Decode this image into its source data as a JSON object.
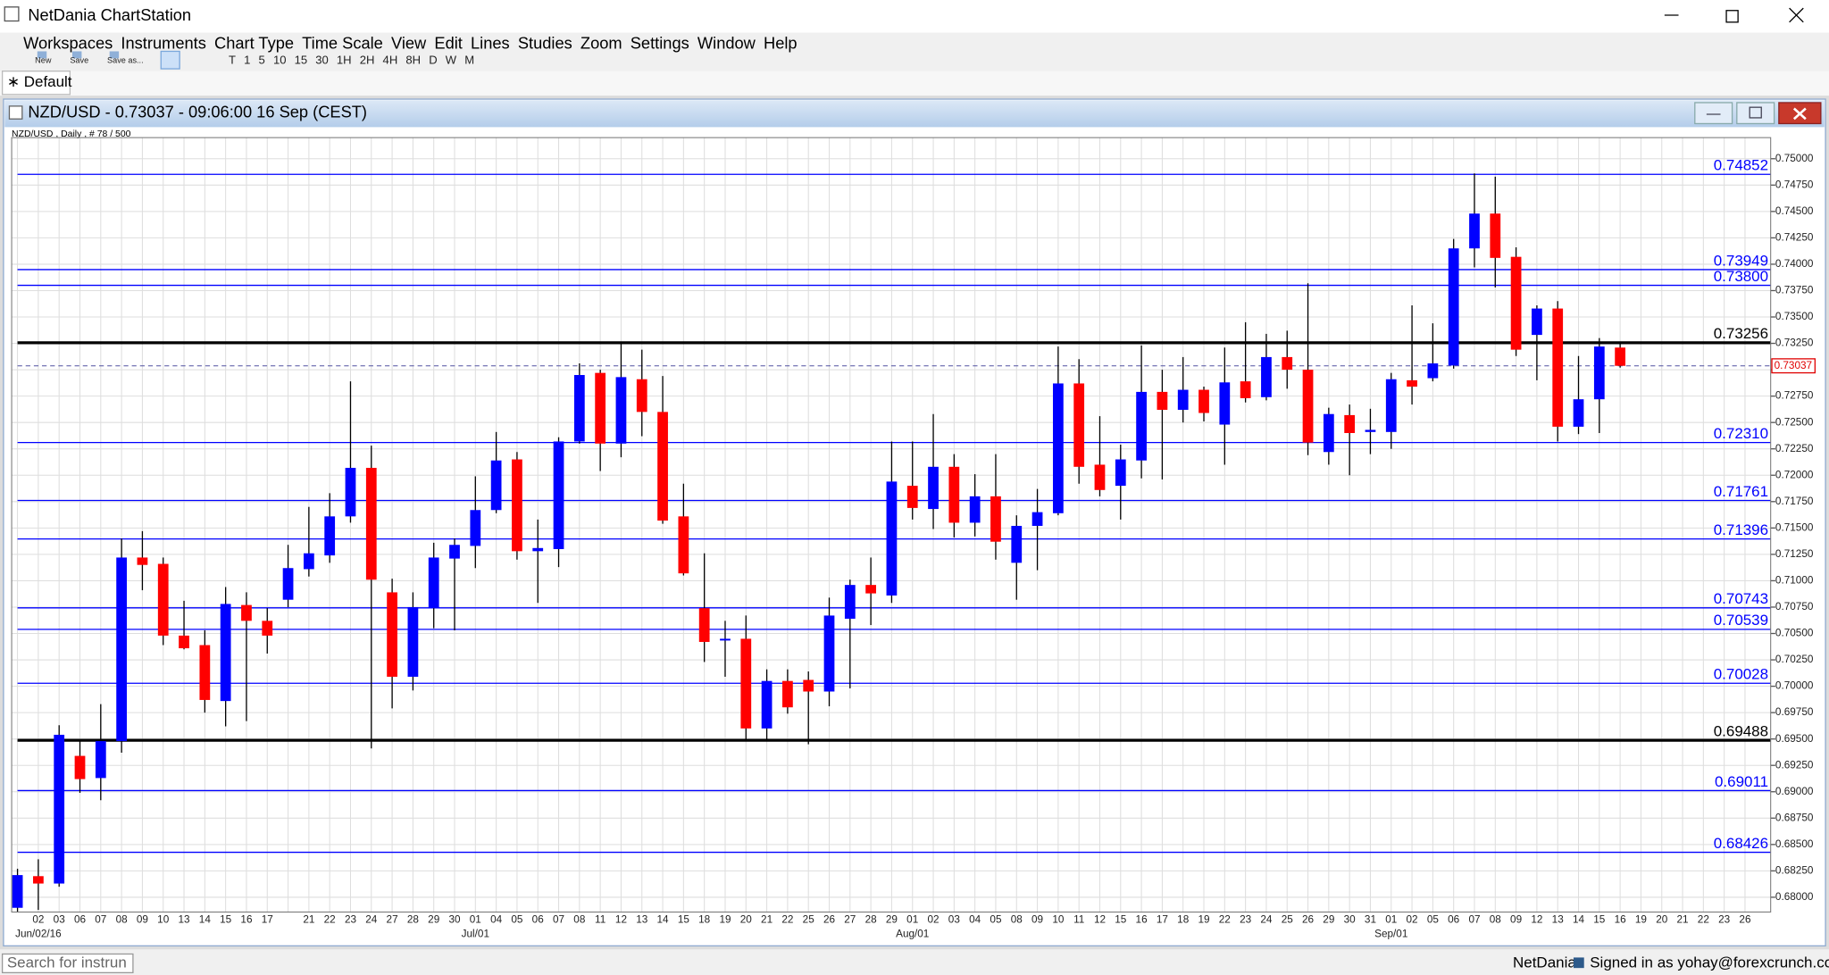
{
  "app": {
    "title": "NetDania ChartStation",
    "menu": [
      "Workspaces",
      "Instruments",
      "Chart Type",
      "Time Scale",
      "View",
      "Edit",
      "Lines",
      "Studies",
      "Zoom",
      "Settings",
      "Window",
      "Help"
    ],
    "file_buttons": [
      "New",
      "Save",
      "Save as..."
    ],
    "timeframes": [
      "T",
      "1",
      "5",
      "10",
      "15",
      "30",
      "1H",
      "2H",
      "4H",
      "8H",
      "D",
      "W",
      "M"
    ],
    "tab": "∗ Default",
    "window_title": "NZD/USD - 0.73037 - 09:06:00  16 Sep (CEST)",
    "footer": {
      "search": "Search for instrun",
      "brand": "NetDania",
      "signed_in": "Signed in as yohay@forexcrunch.com"
    }
  },
  "chart_data": {
    "type": "candlestick",
    "caption": "NZD/USD , Daily , # 78 / 500",
    "categories": [
      null,
      "02",
      "03",
      "06",
      "07",
      "08",
      "09",
      "10",
      "13",
      "14",
      "15",
      "16",
      "17",
      null,
      "21",
      "22",
      "23",
      "24",
      "27",
      "28",
      "29",
      "30",
      "01",
      "04",
      "05",
      "06",
      "07",
      "08",
      "11",
      "12",
      "13",
      "14",
      "15",
      "18",
      "19",
      "20",
      "21",
      "22",
      "25",
      "26",
      "27",
      "28",
      "29",
      "01",
      "02",
      "03",
      "04",
      "05",
      "08",
      "09",
      "10",
      "11",
      "12",
      "15",
      "16",
      "17",
      "18",
      "19",
      "22",
      "23",
      "24",
      "25",
      "26",
      "29",
      "30",
      "31",
      "01",
      "02",
      "05",
      "06",
      "07",
      "08",
      "09",
      "12",
      "13",
      "14",
      "15",
      "16",
      "19",
      "20",
      "21",
      "22",
      "23",
      "26"
    ],
    "month_labels": [
      null,
      "Jun/02/16",
      null,
      null,
      null,
      null,
      null,
      null,
      null,
      null,
      null,
      null,
      null,
      null,
      null,
      null,
      null,
      null,
      null,
      null,
      null,
      null,
      "Jul/01",
      null,
      null,
      null,
      null,
      null,
      null,
      null,
      null,
      null,
      null,
      null,
      null,
      null,
      null,
      null,
      null,
      null,
      null,
      null,
      null,
      "Aug/01",
      null,
      null,
      null,
      null,
      null,
      null,
      null,
      null,
      null,
      null,
      null,
      null,
      null,
      null,
      null,
      null,
      null,
      null,
      null,
      null,
      null,
      null,
      "Sep/01",
      null,
      null,
      null,
      null,
      null,
      null,
      null,
      null,
      null,
      null,
      null,
      null,
      null,
      null,
      null,
      null,
      null
    ],
    "open": [
      0.679,
      0.682,
      0.6813,
      0.6934,
      0.6913,
      0.6948,
      0.7122,
      0.7116,
      0.7048,
      0.7039,
      0.6986,
      0.7077,
      0.7062,
      0.7082,
      0.7111,
      0.7124,
      0.7161,
      0.7207,
      0.7089,
      0.7009,
      0.7074,
      0.7121,
      0.7133,
      0.7167,
      0.7215,
      0.7128,
      0.713,
      0.7232,
      0.7297,
      0.723,
      0.7291,
      0.726,
      0.7161,
      0.7074,
      0.7044,
      0.7045,
      0.696,
      0.7005,
      0.7006,
      0.6995,
      0.7064,
      0.7096,
      0.7086,
      0.719,
      0.7168,
      0.7208,
      0.7155,
      0.718,
      0.7117,
      0.7152,
      0.7164,
      0.7287,
      0.721,
      0.719,
      0.7214,
      0.7279,
      0.7262,
      0.7281,
      0.7248,
      0.7289,
      0.7274,
      0.7312,
      0.73,
      0.7222,
      0.7257,
      0.7241,
      0.7241,
      0.729,
      0.7292,
      0.7304,
      0.7415,
      0.7448,
      0.7407,
      0.7333,
      0.7358,
      0.7246,
      0.7272,
      0.7321,
      null,
      null,
      null,
      null,
      null,
      null
    ],
    "high": [
      0.6827,
      0.6836,
      0.6963,
      0.6948,
      0.6983,
      0.714,
      0.7147,
      0.7122,
      0.7081,
      0.7053,
      0.7094,
      0.7089,
      0.7074,
      0.7134,
      0.717,
      0.7183,
      0.7289,
      0.7228,
      0.7102,
      0.7089,
      0.7136,
      0.714,
      0.7199,
      0.7241,
      0.7222,
      0.7158,
      0.7236,
      0.7306,
      0.73,
      0.7326,
      0.7319,
      0.7294,
      0.7192,
      0.7126,
      0.7062,
      0.7067,
      0.7016,
      0.7016,
      0.7014,
      0.7084,
      0.7101,
      0.7122,
      0.7232,
      0.7232,
      0.7258,
      0.722,
      0.7201,
      0.722,
      0.7162,
      0.7187,
      0.7322,
      0.731,
      0.7256,
      0.7229,
      0.7323,
      0.73,
      0.7312,
      0.7284,
      0.7321,
      0.7345,
      0.7334,
      0.7337,
      0.7382,
      0.7264,
      0.7267,
      0.7263,
      0.7297,
      0.7361,
      0.7344,
      0.7424,
      0.7486,
      0.7483,
      0.7416,
      0.7361,
      0.7365,
      0.7313,
      0.733,
      0.7325,
      null,
      null,
      null,
      null,
      null,
      null
    ],
    "low": [
      0.6785,
      0.6788,
      0.681,
      0.6899,
      0.6892,
      0.6937,
      0.7091,
      0.7039,
      0.7035,
      0.6975,
      0.6962,
      0.6967,
      0.7031,
      0.7075,
      0.7104,
      0.7117,
      0.7155,
      0.6941,
      0.6979,
      0.6996,
      0.7055,
      0.7053,
      0.7112,
      0.7164,
      0.712,
      0.7079,
      0.7113,
      0.723,
      0.7204,
      0.7217,
      0.7237,
      0.7154,
      0.7105,
      0.7023,
      0.7009,
      0.6949,
      0.6949,
      0.6974,
      0.6945,
      0.6981,
      0.6998,
      0.7058,
      0.7079,
      0.7158,
      0.7149,
      0.7141,
      0.7142,
      0.712,
      0.7082,
      0.711,
      0.7162,
      0.7192,
      0.718,
      0.7158,
      0.7197,
      0.7196,
      0.725,
      0.7251,
      0.721,
      0.7269,
      0.7271,
      0.7282,
      0.7219,
      0.721,
      0.72,
      0.722,
      0.7225,
      0.7267,
      0.7289,
      0.7301,
      0.7397,
      0.7378,
      0.7313,
      0.729,
      0.7232,
      0.7239,
      0.724,
      0.7302,
      null,
      null,
      null,
      null,
      null,
      null
    ],
    "close": [
      0.6821,
      0.6813,
      0.6954,
      0.6912,
      0.6948,
      0.7122,
      0.7115,
      0.7048,
      0.7036,
      0.6987,
      0.7078,
      0.7062,
      0.7048,
      0.7112,
      0.7126,
      0.7161,
      0.7207,
      0.7101,
      0.7009,
      0.7075,
      0.7122,
      0.7134,
      0.7167,
      0.7214,
      0.7128,
      0.7131,
      0.7232,
      0.7295,
      0.723,
      0.7293,
      0.726,
      0.7157,
      0.7107,
      0.7042,
      0.7045,
      0.696,
      0.7005,
      0.698,
      0.6995,
      0.7067,
      0.7096,
      0.7088,
      0.7194,
      0.7169,
      0.7208,
      0.7155,
      0.718,
      0.7137,
      0.7152,
      0.7165,
      0.7287,
      0.7208,
      0.7186,
      0.7215,
      0.7279,
      0.7262,
      0.7281,
      0.7259,
      0.7288,
      0.7273,
      0.7312,
      0.73,
      0.7231,
      0.7258,
      0.724,
      0.7243,
      0.7291,
      0.7284,
      0.7306,
      0.7415,
      0.7448,
      0.7406,
      0.7319,
      0.7358,
      0.7246,
      0.7272,
      0.7322,
      0.73037,
      null,
      null,
      null,
      null,
      null,
      null
    ],
    "up_color": "#0000ff",
    "down_color": "#ff0000",
    "ylim": [
      0.6786,
      0.752
    ],
    "yticks": [
      {
        "value": 0.68,
        "label": "0.68000"
      },
      {
        "value": 0.6825,
        "label": "0.68250"
      },
      {
        "value": 0.685,
        "label": "0.68500"
      },
      {
        "value": 0.6875,
        "label": "0.68750"
      },
      {
        "value": 0.69,
        "label": "0.69000"
      },
      {
        "value": 0.6925,
        "label": "0.69250"
      },
      {
        "value": 0.695,
        "label": "0.69500"
      },
      {
        "value": 0.6975,
        "label": "0.69750"
      },
      {
        "value": 0.7,
        "label": "0.70000"
      },
      {
        "value": 0.7025,
        "label": "0.70250"
      },
      {
        "value": 0.705,
        "label": "0.70500"
      },
      {
        "value": 0.7075,
        "label": "0.70750"
      },
      {
        "value": 0.71,
        "label": "0.71000"
      },
      {
        "value": 0.7125,
        "label": "0.71250"
      },
      {
        "value": 0.715,
        "label": "0.71500"
      },
      {
        "value": 0.7175,
        "label": "0.71750"
      },
      {
        "value": 0.72,
        "label": "0.72000"
      },
      {
        "value": 0.7225,
        "label": "0.72250"
      },
      {
        "value": 0.725,
        "label": "0.72500"
      },
      {
        "value": 0.7275,
        "label": "0.72750"
      },
      {
        "value": 0.73,
        "label": "0.73000"
      },
      {
        "value": 0.7325,
        "label": "0.73250"
      },
      {
        "value": 0.735,
        "label": "0.73500"
      },
      {
        "value": 0.7375,
        "label": "0.73750"
      },
      {
        "value": 0.74,
        "label": "0.74000"
      },
      {
        "value": 0.7425,
        "label": "0.74250"
      },
      {
        "value": 0.745,
        "label": "0.74500"
      },
      {
        "value": 0.7475,
        "label": "0.74750"
      },
      {
        "value": 0.75,
        "label": "0.75000"
      }
    ],
    "grid": true,
    "levels": [
      {
        "value": 0.74852,
        "label": "0.74852",
        "color": "#0000ff",
        "bold": false
      },
      {
        "value": 0.73949,
        "label": "0.73949",
        "color": "#0000ff",
        "bold": false
      },
      {
        "value": 0.738,
        "label": "0.73800",
        "color": "#0000ff",
        "bold": false
      },
      {
        "value": 0.73256,
        "label": "0.73256",
        "color": "#000000",
        "bold": true
      },
      {
        "value": 0.7231,
        "label": "0.72310",
        "color": "#0000ff",
        "bold": false
      },
      {
        "value": 0.71761,
        "label": "0.71761",
        "color": "#0000ff",
        "bold": false
      },
      {
        "value": 0.71396,
        "label": "0.71396",
        "color": "#0000ff",
        "bold": false
      },
      {
        "value": 0.70743,
        "label": "0.70743",
        "color": "#0000ff",
        "bold": false
      },
      {
        "value": 0.70539,
        "label": "0.70539",
        "color": "#0000ff",
        "bold": false
      },
      {
        "value": 0.70028,
        "label": "0.70028",
        "color": "#0000ff",
        "bold": false
      },
      {
        "value": 0.69488,
        "label": "0.69488",
        "color": "#000000",
        "bold": true
      },
      {
        "value": 0.69011,
        "label": "0.69011",
        "color": "#0000ff",
        "bold": false
      },
      {
        "value": 0.68426,
        "label": "0.68426",
        "color": "#0000ff",
        "bold": false
      }
    ],
    "last": {
      "value": 0.73037,
      "label": "0.73037",
      "color": "#e00000"
    }
  }
}
